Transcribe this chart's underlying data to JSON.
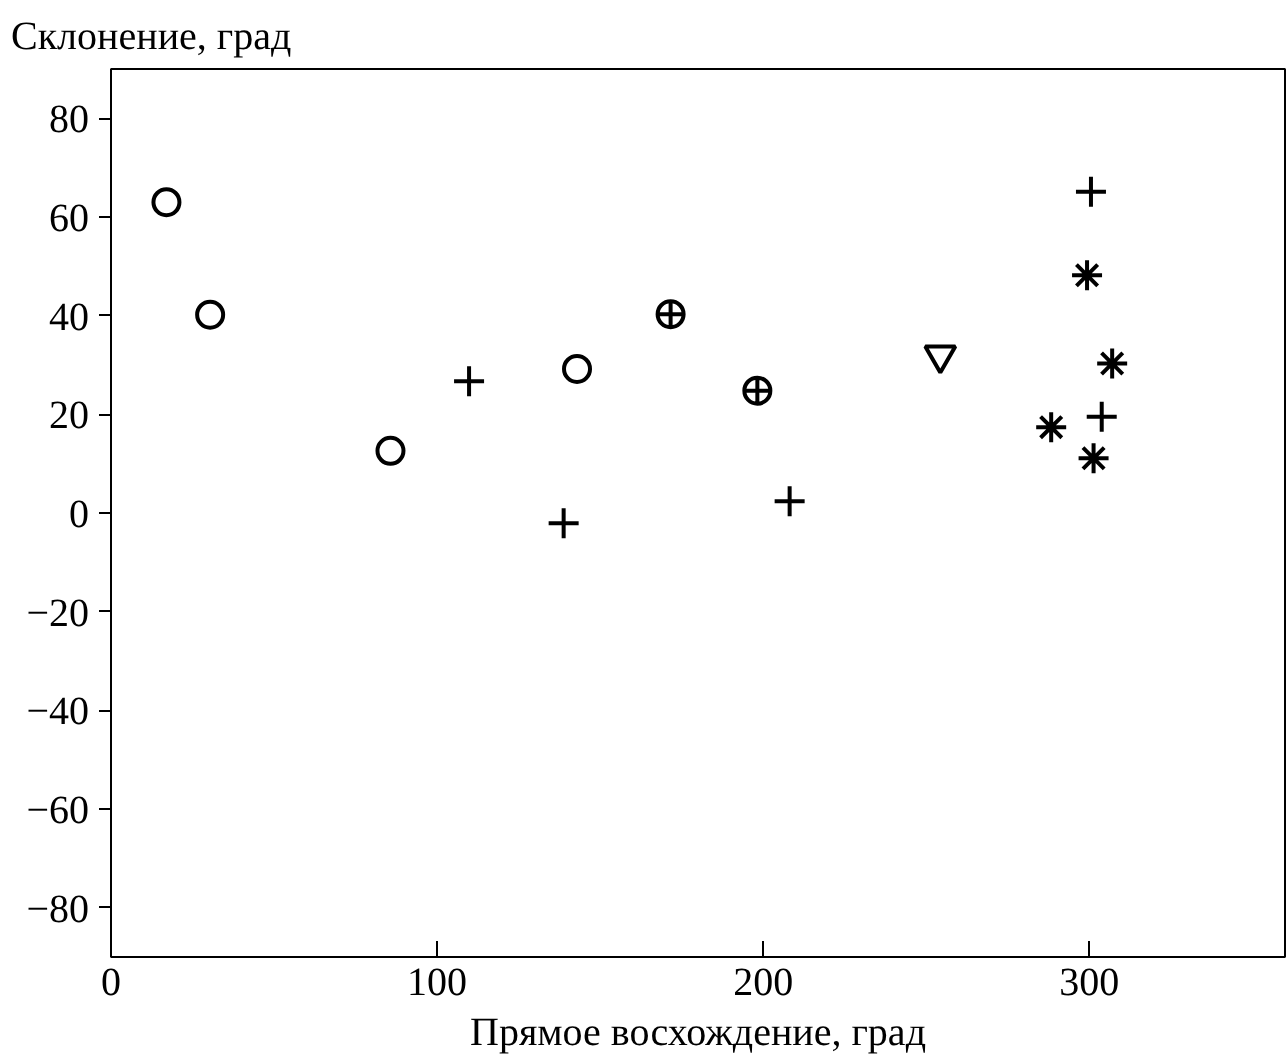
{
  "chart_data": {
    "type": "scatter",
    "xlabel": "Прямое восхождение, град",
    "ylabel": "Склонение, град",
    "xlim": [
      0,
      360
    ],
    "ylim": [
      -90,
      90
    ],
    "xticks": [
      0,
      100,
      200,
      300
    ],
    "yticks": [
      -80,
      -60,
      -40,
      -20,
      0,
      20,
      40,
      60,
      80
    ],
    "grid": false,
    "series": [
      {
        "marker": "circle",
        "color": "#000000",
        "x": [
          17,
          30.4,
          85.7,
          142.9
        ],
        "values": [
          63,
          40.2,
          12.6,
          29.2
        ]
      },
      {
        "marker": "cross",
        "color": "#000000",
        "x": [
          109.8,
          138.8,
          208.1,
          300.5,
          303.8
        ],
        "values": [
          26.7,
          -2.1,
          2.4,
          65.1,
          19.5
        ]
      },
      {
        "marker": "circle_cross",
        "color": "#000000",
        "x": [
          171.6,
          198.2
        ],
        "values": [
          40.3,
          24.8
        ]
      },
      {
        "marker": "triangle",
        "color": "#000000",
        "x": [
          254.3
        ],
        "values": [
          32
        ]
      },
      {
        "color": "#000000",
        "x": [
          299.3,
          307,
          288.3,
          301.3
        ],
        "values": [
          48.2,
          30.3,
          17.4,
          11.1
        ]
      }
    ]
  }
}
